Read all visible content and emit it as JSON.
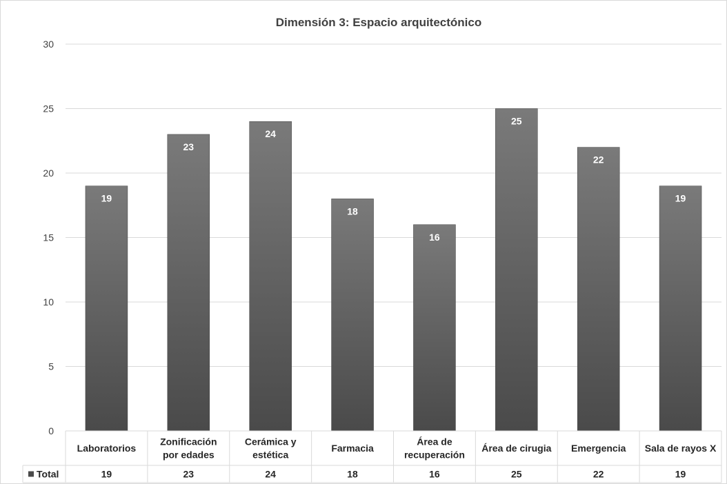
{
  "chart_data": {
    "type": "bar",
    "title": "Dimensión 3: Espacio arquitectónico",
    "categories": [
      [
        "Laboratorios"
      ],
      [
        "Zonificación",
        "por edades"
      ],
      [
        "Cerámica y",
        "estética"
      ],
      [
        "Farmacia"
      ],
      [
        "Área de",
        "recuperación"
      ],
      [
        "Área de cirugia"
      ],
      [
        "Emergencia"
      ],
      [
        "Sala de rayos X"
      ]
    ],
    "series": [
      {
        "name": "Total",
        "values": [
          19,
          23,
          24,
          18,
          16,
          25,
          22,
          19
        ]
      }
    ],
    "ylim": [
      0,
      30
    ],
    "yticks": [
      0,
      5,
      10,
      15,
      20,
      25,
      30
    ],
    "grid": true,
    "data_table": true,
    "legend_placement": "data-table-left",
    "colors": {
      "bar_top": "#7a7a7a",
      "bar_bottom": "#4a4a4a",
      "grid": "#d9d9d9",
      "text": "#404040"
    }
  }
}
